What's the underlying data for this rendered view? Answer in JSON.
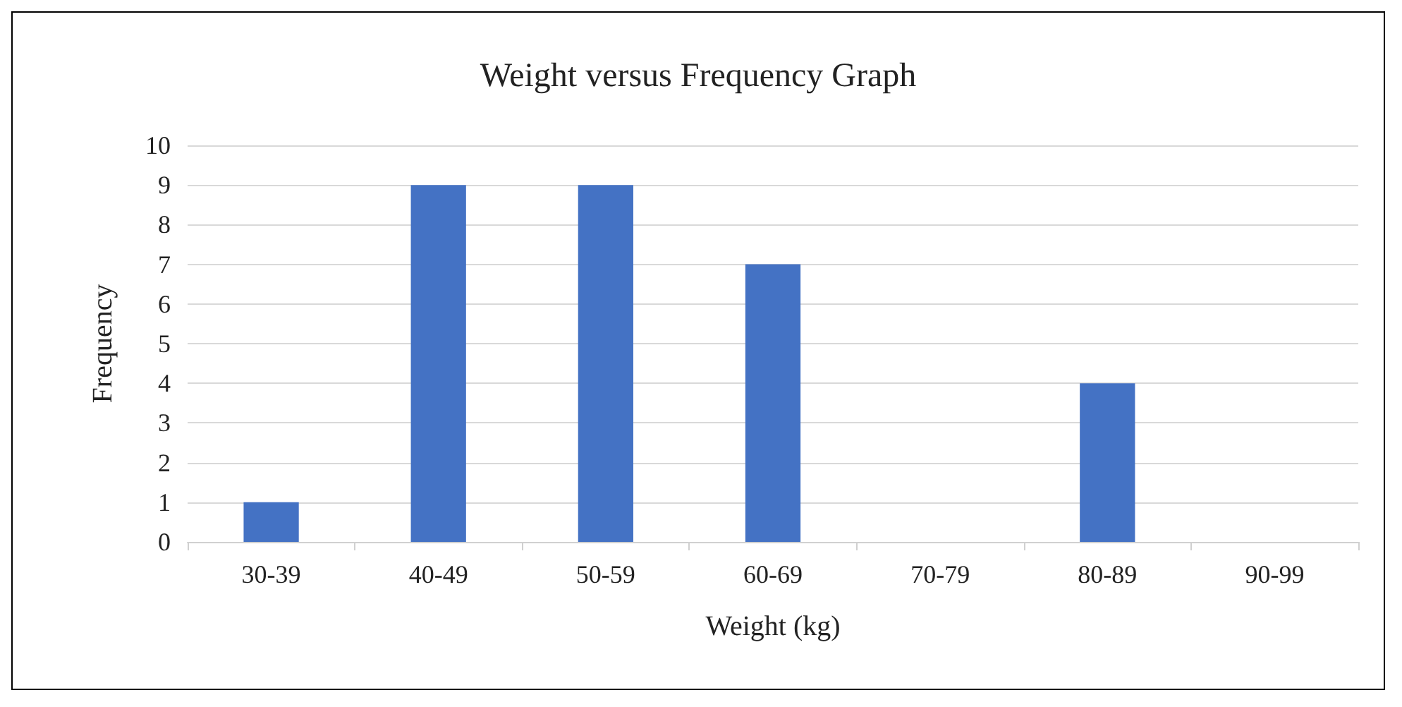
{
  "chart_data": {
    "type": "bar",
    "title": "Weight versus Frequency Graph",
    "xlabel": "Weight (kg)",
    "ylabel": "Frequency",
    "categories": [
      "30-39",
      "40-49",
      "50-59",
      "60-69",
      "70-79",
      "80-89",
      "90-99"
    ],
    "values": [
      1,
      9,
      9,
      7,
      0,
      4,
      0
    ],
    "color": "#4472c4",
    "ylim": [
      0,
      10
    ],
    "yticks": [
      0,
      1,
      2,
      3,
      4,
      5,
      6,
      7,
      8,
      9,
      10
    ],
    "grid": "y"
  }
}
